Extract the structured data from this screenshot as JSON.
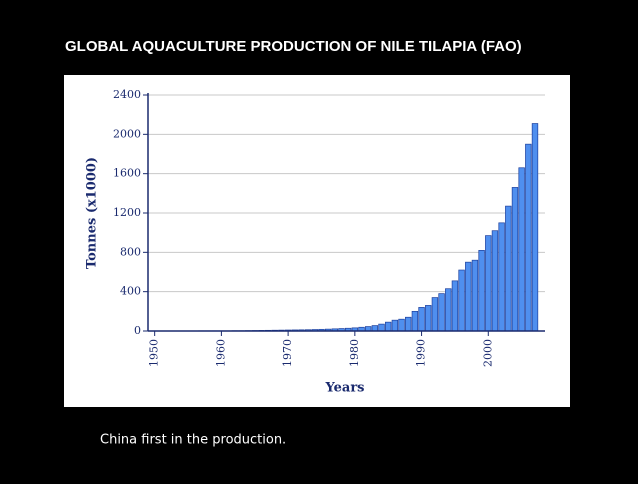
{
  "chart_data": {
    "type": "bar",
    "title": "GLOBAL AQUACULTURE PRODUCTION OF NILE TILAPIA (FAO)",
    "y_label": "Tonnes (x1000)",
    "x_label": "Years",
    "caption": "China first in the production.",
    "x": [
      1950,
      1951,
      1952,
      1953,
      1954,
      1955,
      1956,
      1957,
      1958,
      1959,
      1960,
      1961,
      1962,
      1963,
      1964,
      1965,
      1966,
      1967,
      1968,
      1969,
      1970,
      1971,
      1972,
      1973,
      1974,
      1975,
      1976,
      1977,
      1978,
      1979,
      1980,
      1981,
      1982,
      1983,
      1984,
      1985,
      1986,
      1987,
      1988,
      1989,
      1990,
      1991,
      1992,
      1993,
      1994,
      1995,
      1996,
      1997,
      1998,
      1999,
      2000,
      2001,
      2002,
      2003,
      2004,
      2005,
      2006,
      2007
    ],
    "values": [
      1,
      1,
      1,
      1,
      1,
      1,
      1,
      2,
      2,
      2,
      2,
      2,
      3,
      3,
      4,
      5,
      6,
      7,
      8,
      9,
      10,
      11,
      12,
      13,
      15,
      17,
      19,
      22,
      25,
      28,
      32,
      38,
      45,
      55,
      70,
      90,
      110,
      120,
      140,
      200,
      240,
      260,
      340,
      380,
      430,
      510,
      620,
      700,
      720,
      820,
      970,
      1020,
      1100,
      1270,
      1460,
      1660,
      1900,
      2110
    ],
    "color": "#4f8fef",
    "xlim": [
      1949,
      2008.5
    ],
    "xticks": [
      1950,
      1960,
      1970,
      1980,
      1990,
      2000
    ],
    "ylim": [
      0,
      2400
    ],
    "yticks": [
      0,
      400,
      800,
      1200,
      1600,
      2000,
      2400
    ],
    "grid": true
  }
}
